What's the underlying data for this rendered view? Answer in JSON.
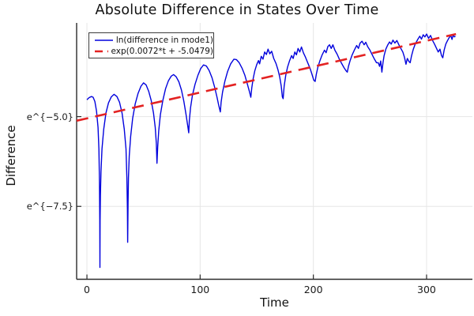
{
  "colors": {
    "blue_series": "#0202dd",
    "red_series": "#e32222",
    "grid": "#e6e6e6",
    "axis": "#2b2b2b",
    "tick_label": "#1a1a1a"
  },
  "chart_data": {
    "type": "line",
    "title": "Absolute Difference in States Over Time",
    "xlabel": "Time",
    "ylabel": "Difference",
    "grid": true,
    "legend_position": "top-left",
    "xlim": [
      -9.1,
      340.5
    ],
    "ylim_ln": [
      -9.53,
      -2.39
    ],
    "x_ticks": [
      0,
      100,
      200,
      300
    ],
    "x_tick_labels": [
      "0",
      "100",
      "200",
      "300"
    ],
    "y_ticks": [
      -5.0,
      -7.5
    ],
    "y_tick_labels": [
      "e^{−5.0}",
      "e^{−7.5}"
    ],
    "series": [
      {
        "name": "ln(difference in mode1)",
        "style": "solid",
        "points": [
          [
            0,
            -4.53
          ],
          [
            2,
            -4.47
          ],
          [
            4,
            -4.44
          ],
          [
            5.5,
            -4.46
          ],
          [
            7,
            -4.58
          ],
          [
            8.5,
            -4.85
          ],
          [
            9.8,
            -5.3
          ],
          [
            10.6,
            -5.9
          ],
          [
            11.1,
            -6.8
          ],
          [
            11.35,
            -7.9
          ],
          [
            11.5,
            -9.2
          ],
          [
            11.65,
            -7.9
          ],
          [
            11.9,
            -7.2
          ],
          [
            12.4,
            -6.55
          ],
          [
            13.3,
            -5.9
          ],
          [
            14.8,
            -5.35
          ],
          [
            16.8,
            -4.9
          ],
          [
            19,
            -4.62
          ],
          [
            21.5,
            -4.45
          ],
          [
            24,
            -4.38
          ],
          [
            26.5,
            -4.44
          ],
          [
            28.8,
            -4.6
          ],
          [
            31,
            -4.9
          ],
          [
            33,
            -5.35
          ],
          [
            34.5,
            -5.9
          ],
          [
            35.3,
            -6.7
          ],
          [
            35.75,
            -7.6
          ],
          [
            36,
            -8.5
          ],
          [
            36.3,
            -7.4
          ],
          [
            36.7,
            -6.7
          ],
          [
            37.4,
            -6.1
          ],
          [
            38.6,
            -5.55
          ],
          [
            40.4,
            -5.05
          ],
          [
            42.6,
            -4.65
          ],
          [
            45.2,
            -4.35
          ],
          [
            47.8,
            -4.15
          ],
          [
            50,
            -4.06
          ],
          [
            52.3,
            -4.12
          ],
          [
            54.6,
            -4.3
          ],
          [
            56.8,
            -4.55
          ],
          [
            58.8,
            -4.9
          ],
          [
            60.3,
            -5.3
          ],
          [
            61.3,
            -5.75
          ],
          [
            61.9,
            -6.3
          ],
          [
            62.5,
            -5.85
          ],
          [
            63.4,
            -5.4
          ],
          [
            64.9,
            -4.95
          ],
          [
            67,
            -4.55
          ],
          [
            69.5,
            -4.22
          ],
          [
            72,
            -4.0
          ],
          [
            74.5,
            -3.87
          ],
          [
            76.5,
            -3.83
          ],
          [
            78.8,
            -3.89
          ],
          [
            81.2,
            -4.03
          ],
          [
            83.5,
            -4.26
          ],
          [
            85.6,
            -4.57
          ],
          [
            87.5,
            -4.93
          ],
          [
            89,
            -5.25
          ],
          [
            89.9,
            -5.45
          ],
          [
            90.5,
            -5.1
          ],
          [
            91.5,
            -4.75
          ],
          [
            93.2,
            -4.4
          ],
          [
            95.5,
            -4.1
          ],
          [
            98,
            -3.85
          ],
          [
            100.5,
            -3.66
          ],
          [
            103,
            -3.56
          ],
          [
            105.5,
            -3.59
          ],
          [
            108,
            -3.72
          ],
          [
            110.5,
            -3.92
          ],
          [
            112.8,
            -4.18
          ],
          [
            114.8,
            -4.45
          ],
          [
            116.5,
            -4.7
          ],
          [
            117.8,
            -4.87
          ],
          [
            118.5,
            -4.6
          ],
          [
            119.8,
            -4.32
          ],
          [
            121.8,
            -4.02
          ],
          [
            124.2,
            -3.75
          ],
          [
            127,
            -3.53
          ],
          [
            129.8,
            -3.4
          ],
          [
            132,
            -3.41
          ],
          [
            134.5,
            -3.5
          ],
          [
            137,
            -3.65
          ],
          [
            139.5,
            -3.85
          ],
          [
            141.8,
            -4.1
          ],
          [
            143.5,
            -4.3
          ],
          [
            144.8,
            -4.46
          ],
          [
            145.6,
            -4.2
          ],
          [
            146.8,
            -3.95
          ],
          [
            148.3,
            -3.72
          ],
          [
            150,
            -3.55
          ],
          [
            151.5,
            -3.44
          ],
          [
            152.5,
            -3.53
          ],
          [
            154,
            -3.32
          ],
          [
            155.5,
            -3.4
          ],
          [
            157,
            -3.2
          ],
          [
            158.5,
            -3.27
          ],
          [
            160,
            -3.12
          ],
          [
            161.5,
            -3.25
          ],
          [
            163.2,
            -3.18
          ],
          [
            165,
            -3.38
          ],
          [
            167,
            -3.52
          ],
          [
            168.8,
            -3.7
          ],
          [
            170.3,
            -3.9
          ],
          [
            171.6,
            -4.15
          ],
          [
            172.6,
            -4.45
          ],
          [
            173.3,
            -4.5
          ],
          [
            174.2,
            -4.15
          ],
          [
            175.6,
            -3.85
          ],
          [
            177.2,
            -3.62
          ],
          [
            179,
            -3.44
          ],
          [
            180.8,
            -3.3
          ],
          [
            182.2,
            -3.38
          ],
          [
            183.6,
            -3.2
          ],
          [
            185,
            -3.28
          ],
          [
            186.5,
            -3.1
          ],
          [
            188,
            -3.2
          ],
          [
            189.5,
            -3.06
          ],
          [
            191.2,
            -3.22
          ],
          [
            193,
            -3.34
          ],
          [
            195,
            -3.5
          ],
          [
            197,
            -3.65
          ],
          [
            198.8,
            -3.82
          ],
          [
            200.3,
            -3.98
          ],
          [
            201.6,
            -4.02
          ],
          [
            202.6,
            -3.82
          ],
          [
            204,
            -3.62
          ],
          [
            205.8,
            -3.44
          ],
          [
            207.8,
            -3.28
          ],
          [
            209.8,
            -3.15
          ],
          [
            211.3,
            -3.22
          ],
          [
            212.8,
            -3.05
          ],
          [
            214.3,
            -3.0
          ],
          [
            215.8,
            -3.1
          ],
          [
            217.3,
            -3.0
          ],
          [
            219,
            -3.15
          ],
          [
            221,
            -3.26
          ],
          [
            223,
            -3.4
          ],
          [
            225,
            -3.52
          ],
          [
            227,
            -3.63
          ],
          [
            228.8,
            -3.72
          ],
          [
            230,
            -3.76
          ],
          [
            231,
            -3.6
          ],
          [
            232.5,
            -3.44
          ],
          [
            234.3,
            -3.28
          ],
          [
            236.3,
            -3.14
          ],
          [
            238.3,
            -3.02
          ],
          [
            239.8,
            -3.1
          ],
          [
            241.3,
            -2.95
          ],
          [
            243,
            -2.9
          ],
          [
            244.8,
            -3.0
          ],
          [
            246.3,
            -2.93
          ],
          [
            248,
            -3.05
          ],
          [
            250,
            -3.15
          ],
          [
            252,
            -3.28
          ],
          [
            254,
            -3.4
          ],
          [
            255.8,
            -3.5
          ],
          [
            257.3,
            -3.5
          ],
          [
            258.5,
            -3.6
          ],
          [
            259.5,
            -3.45
          ],
          [
            260.5,
            -3.76
          ],
          [
            261.5,
            -3.5
          ],
          [
            262.5,
            -3.3
          ],
          [
            264,
            -3.12
          ],
          [
            265.8,
            -3.0
          ],
          [
            267.3,
            -2.92
          ],
          [
            268.8,
            -2.98
          ],
          [
            270.3,
            -2.87
          ],
          [
            272,
            -2.95
          ],
          [
            273.8,
            -2.88
          ],
          [
            275.5,
            -3.0
          ],
          [
            277.3,
            -3.1
          ],
          [
            279,
            -3.2
          ],
          [
            280.5,
            -3.35
          ],
          [
            281.8,
            -3.54
          ],
          [
            283,
            -3.38
          ],
          [
            284.3,
            -3.46
          ],
          [
            285.5,
            -3.5
          ],
          [
            286.8,
            -3.3
          ],
          [
            288.3,
            -3.12
          ],
          [
            290,
            -2.98
          ],
          [
            292,
            -2.86
          ],
          [
            294,
            -2.76
          ],
          [
            295.5,
            -2.84
          ],
          [
            297,
            -2.72
          ],
          [
            298.5,
            -2.78
          ],
          [
            300,
            -2.7
          ],
          [
            301.8,
            -2.82
          ],
          [
            303.5,
            -2.74
          ],
          [
            305.3,
            -2.88
          ],
          [
            307,
            -2.98
          ],
          [
            308.8,
            -3.1
          ],
          [
            310.3,
            -3.2
          ],
          [
            311.8,
            -3.12
          ],
          [
            313.2,
            -3.3
          ],
          [
            314.3,
            -3.36
          ],
          [
            315.5,
            -3.15
          ],
          [
            317,
            -2.98
          ],
          [
            318.5,
            -2.88
          ],
          [
            320,
            -2.8
          ],
          [
            321.3,
            -2.74
          ],
          [
            322.5,
            -2.85
          ],
          [
            323.5,
            -2.72
          ],
          [
            324.5,
            -2.78
          ],
          [
            325.5,
            -2.76
          ]
        ]
      },
      {
        "name": "exp(0.0072*t + -5.0479)",
        "style": "dashed",
        "slope": 0.0072,
        "intercept": -5.0479,
        "points": [
          [
            -9.1,
            -5.113
          ],
          [
            326,
            -2.701
          ]
        ]
      }
    ]
  }
}
